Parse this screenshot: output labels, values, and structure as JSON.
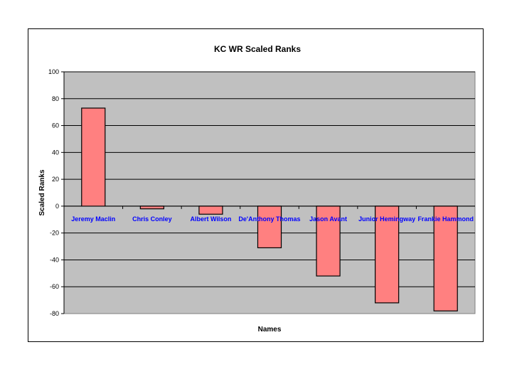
{
  "chart_data": {
    "type": "bar",
    "title": "KC WR  Scaled Ranks",
    "xlabel": "Names",
    "ylabel": "Scaled Ranks",
    "categories": [
      "Jeremy Maclin",
      "Chris Conley",
      "Albert Wilson",
      "De'Anthony Thomas",
      "Jason Avant",
      "Junior Hemingway",
      "Frankie Hammond"
    ],
    "values": [
      73,
      -2,
      -6,
      -31,
      -52,
      -72,
      -78
    ],
    "ylim": [
      -80,
      100
    ],
    "yticks": [
      100,
      80,
      60,
      40,
      20,
      0,
      -20,
      -40,
      -60,
      -80
    ],
    "grid": true,
    "legend": "none",
    "colors": {
      "bar_fill": "#ff8080",
      "plot_background": "#c0c0c0",
      "category_label": "#0000ff",
      "grid": "#000000"
    }
  }
}
